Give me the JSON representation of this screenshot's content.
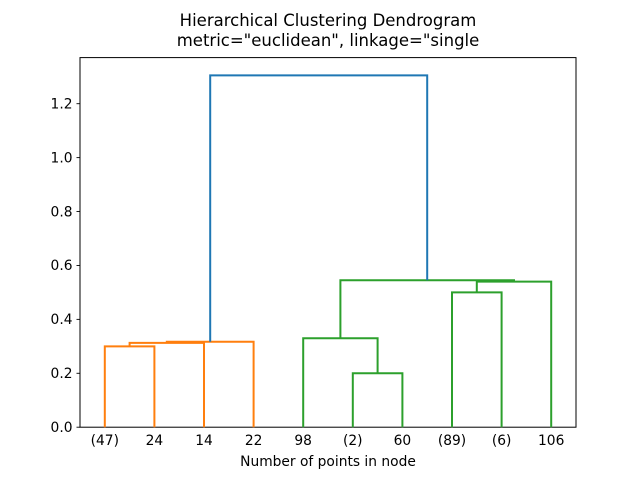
{
  "figure": {
    "background": "#ffffff"
  },
  "chart_data": {
    "type": "dendrogram",
    "title": "Hierarchical Clustering Dendrogram",
    "subtitle": "metric=\"euclidean\", linkage=\"single",
    "xlabel": "Number of points in node",
    "leaf_labels": [
      "(47)",
      "24",
      "14",
      "22",
      "98",
      "(2)",
      "60",
      "(89)",
      "(6)",
      "106"
    ],
    "yticks": [
      0.0,
      0.2,
      0.4,
      0.6,
      0.8,
      1.0,
      1.2
    ],
    "ytick_labels": [
      "0.0",
      "0.2",
      "0.4",
      "0.6",
      "0.8",
      "1.0",
      "1.2"
    ],
    "ylim": [
      0,
      1.371
    ],
    "grid": false,
    "legend": "none",
    "colors": {
      "cluster_left": "#ff7f0e",
      "cluster_right": "#2ca02c",
      "root_link": "#1f77b4",
      "axis": "#000000"
    },
    "links": [
      {
        "x1": 0,
        "h1": 0,
        "x2": 1,
        "h2": 0,
        "h": 0.3,
        "color_key": "cluster_left"
      },
      {
        "x1": 0.5,
        "h1": 0.3,
        "x2": 2,
        "h2": 0,
        "h": 0.313,
        "color_key": "cluster_left"
      },
      {
        "x1": 1.25,
        "h1": 0.313,
        "x2": 3,
        "h2": 0,
        "h": 0.317,
        "color_key": "cluster_left"
      },
      {
        "x1": 5,
        "h1": 0,
        "x2": 6,
        "h2": 0,
        "h": 0.2,
        "color_key": "cluster_right"
      },
      {
        "x1": 4,
        "h1": 0,
        "x2": 5.5,
        "h2": 0.2,
        "h": 0.33,
        "color_key": "cluster_right"
      },
      {
        "x1": 7,
        "h1": 0,
        "x2": 8,
        "h2": 0,
        "h": 0.5,
        "color_key": "cluster_right"
      },
      {
        "x1": 7.5,
        "h1": 0.5,
        "x2": 9,
        "h2": 0,
        "h": 0.54,
        "color_key": "cluster_right"
      },
      {
        "x1": 4.75,
        "h1": 0.33,
        "x2": 8.25,
        "h2": 0.54,
        "h": 0.545,
        "color_key": "cluster_right"
      },
      {
        "x1": 2.125,
        "h1": 0.317,
        "x2": 6.5,
        "h2": 0.545,
        "h": 1.305,
        "color_key": "root_link"
      }
    ]
  }
}
